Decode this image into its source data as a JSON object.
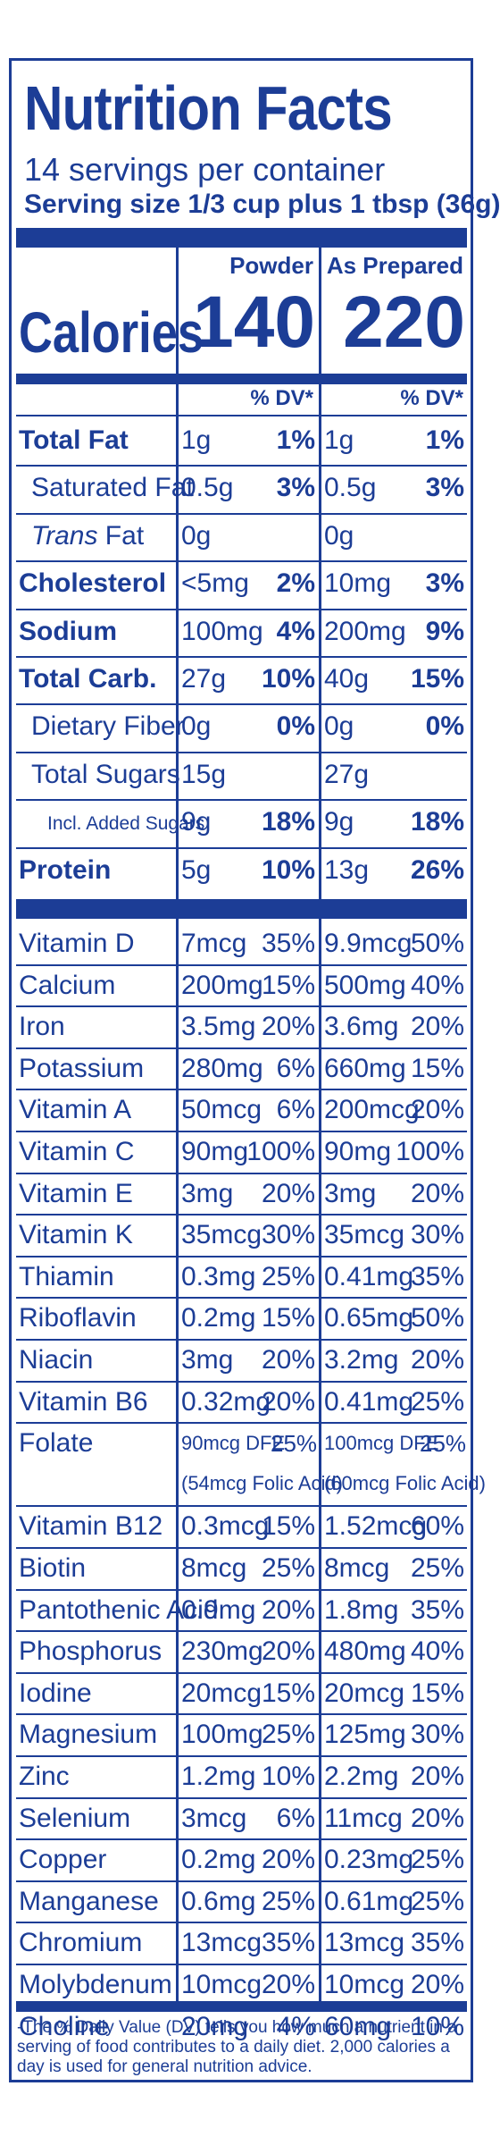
{
  "title": "Nutrition Facts",
  "servings": "14 servings per container",
  "serving_size": "Serving size 1/3 cup plus 1 tbsp (36g)",
  "columns": {
    "powder": "Powder",
    "prepared": "As Prepared"
  },
  "calories": {
    "label": "Calories",
    "powder": "140",
    "prepared": "220"
  },
  "dv_header": "% DV*",
  "macros": [
    {
      "name": "Total Fat",
      "bold": true,
      "indent": 0,
      "p_amt": "1g",
      "p_dv": "1%",
      "a_amt": "1g",
      "a_dv": "1%"
    },
    {
      "name": "Saturated Fat",
      "bold": false,
      "indent": 1,
      "p_amt": "0.5g",
      "p_dv": "3%",
      "a_amt": "0.5g",
      "a_dv": "3%"
    },
    {
      "name": "Trans Fat",
      "bold": false,
      "indent": 1,
      "italic_word": "Trans",
      "p_amt": "0g",
      "p_dv": "",
      "a_amt": "0g",
      "a_dv": ""
    },
    {
      "name": "Cholesterol",
      "bold": true,
      "indent": 0,
      "p_amt": "<5mg",
      "p_dv": "2%",
      "a_amt": "10mg",
      "a_dv": "3%"
    },
    {
      "name": "Sodium",
      "bold": true,
      "indent": 0,
      "p_amt": "100mg",
      "p_dv": "4%",
      "a_amt": "200mg",
      "a_dv": "9%"
    },
    {
      "name": "Total Carb.",
      "bold": true,
      "indent": 0,
      "p_amt": "27g",
      "p_dv": "10%",
      "a_amt": "40g",
      "a_dv": "15%"
    },
    {
      "name": "Dietary Fiber",
      "bold": false,
      "indent": 1,
      "p_amt": "0g",
      "p_dv": "0%",
      "a_amt": "0g",
      "a_dv": "0%"
    },
    {
      "name": "Total Sugars",
      "bold": false,
      "indent": 1,
      "p_amt": "15g",
      "p_dv": "",
      "a_amt": "27g",
      "a_dv": ""
    },
    {
      "name": "Incl. Added Sugars",
      "bold": false,
      "indent": 2,
      "small": true,
      "p_amt": "9g",
      "p_dv": "18%",
      "a_amt": "9g",
      "a_dv": "18%"
    },
    {
      "name": "Protein",
      "bold": true,
      "indent": 0,
      "p_amt": "5g",
      "p_dv": "10%",
      "a_amt": "13g",
      "a_dv": "26%"
    }
  ],
  "vitamins": [
    {
      "name": "Vitamin D",
      "p_amt": "7mcg",
      "p_dv": "35%",
      "a_amt": "9.9mcg",
      "a_dv": "50%"
    },
    {
      "name": "Calcium",
      "p_amt": "200mg",
      "p_dv": "15%",
      "a_amt": "500mg",
      "a_dv": "40%"
    },
    {
      "name": "Iron",
      "p_amt": "3.5mg",
      "p_dv": "20%",
      "a_amt": "3.6mg",
      "a_dv": "20%"
    },
    {
      "name": "Potassium",
      "p_amt": "280mg",
      "p_dv": "6%",
      "a_amt": "660mg",
      "a_dv": "15%"
    },
    {
      "name": "Vitamin A",
      "p_amt": "50mcg",
      "p_dv": "6%",
      "a_amt": "200mcg",
      "a_dv": "20%"
    },
    {
      "name": "Vitamin C",
      "p_amt": "90mg",
      "p_dv": "100%",
      "a_amt": "90mg",
      "a_dv": "100%"
    },
    {
      "name": "Vitamin E",
      "p_amt": "3mg",
      "p_dv": "20%",
      "a_amt": "3mg",
      "a_dv": "20%"
    },
    {
      "name": "Vitamin K",
      "p_amt": "35mcg",
      "p_dv": "30%",
      "a_amt": "35mcg",
      "a_dv": "30%"
    },
    {
      "name": "Thiamin",
      "p_amt": "0.3mg",
      "p_dv": "25%",
      "a_amt": "0.41mg",
      "a_dv": "35%"
    },
    {
      "name": "Riboflavin",
      "p_amt": "0.2mg",
      "p_dv": "15%",
      "a_amt": "0.65mg",
      "a_dv": "50%"
    },
    {
      "name": "Niacin",
      "p_amt": "3mg",
      "p_dv": "20%",
      "a_amt": "3.2mg",
      "a_dv": "20%"
    },
    {
      "name": "Vitamin B6",
      "p_amt": "0.32mg",
      "p_dv": "20%",
      "a_amt": "0.41mg",
      "a_dv": "25%"
    },
    {
      "name": "Folate",
      "double": true,
      "p_amt": "90mcg DFE",
      "p_dv": "25%",
      "p_sub": "(54mcg Folic Acid)",
      "a_amt": "100mcg DFE",
      "a_dv": "25%",
      "a_sub": "(60mcg Folic Acid)"
    },
    {
      "name": "Vitamin B12",
      "p_amt": "0.3mcg",
      "p_dv": "15%",
      "a_amt": "1.52mcg",
      "a_dv": "60%"
    },
    {
      "name": "Biotin",
      "p_amt": "8mcg",
      "p_dv": "25%",
      "a_amt": "8mcg",
      "a_dv": "25%"
    },
    {
      "name": "Pantothenic Acid",
      "p_amt": "0.9mg",
      "p_dv": "20%",
      "a_amt": "1.8mg",
      "a_dv": "35%"
    },
    {
      "name": "Phosphorus",
      "p_amt": "230mg",
      "p_dv": "20%",
      "a_amt": "480mg",
      "a_dv": "40%"
    },
    {
      "name": "Iodine",
      "p_amt": "20mcg",
      "p_dv": "15%",
      "a_amt": "20mcg",
      "a_dv": "15%"
    },
    {
      "name": "Magnesium",
      "p_amt": "100mg",
      "p_dv": "25%",
      "a_amt": "125mg",
      "a_dv": "30%"
    },
    {
      "name": "Zinc",
      "p_amt": "1.2mg",
      "p_dv": "10%",
      "a_amt": "2.2mg",
      "a_dv": "20%"
    },
    {
      "name": "Selenium",
      "p_amt": "3mcg",
      "p_dv": "6%",
      "a_amt": "11mcg",
      "a_dv": "20%"
    },
    {
      "name": "Copper",
      "p_amt": "0.2mg",
      "p_dv": "20%",
      "a_amt": "0.23mg",
      "a_dv": "25%"
    },
    {
      "name": "Manganese",
      "p_amt": "0.6mg",
      "p_dv": "25%",
      "a_amt": "0.61mg",
      "a_dv": "25%"
    },
    {
      "name": "Chromium",
      "p_amt": "13mcg",
      "p_dv": "35%",
      "a_amt": "13mcg",
      "a_dv": "35%"
    },
    {
      "name": "Molybdenum",
      "p_amt": "10mcg",
      "p_dv": "20%",
      "a_amt": "10mcg",
      "a_dv": "20%"
    },
    {
      "name": "Choline",
      "p_amt": "20mg",
      "p_dv": "4%",
      "a_amt": "60mg",
      "a_dv": "10%"
    }
  ],
  "footnote": "-The % Daily Value (DV) tells you how much a nutrient in a serving of food contributes to a daily diet. 2,000 calories a day is used for general nutrition advice.",
  "colors": {
    "ink": "#1c3d96",
    "background": "#ffffff"
  }
}
